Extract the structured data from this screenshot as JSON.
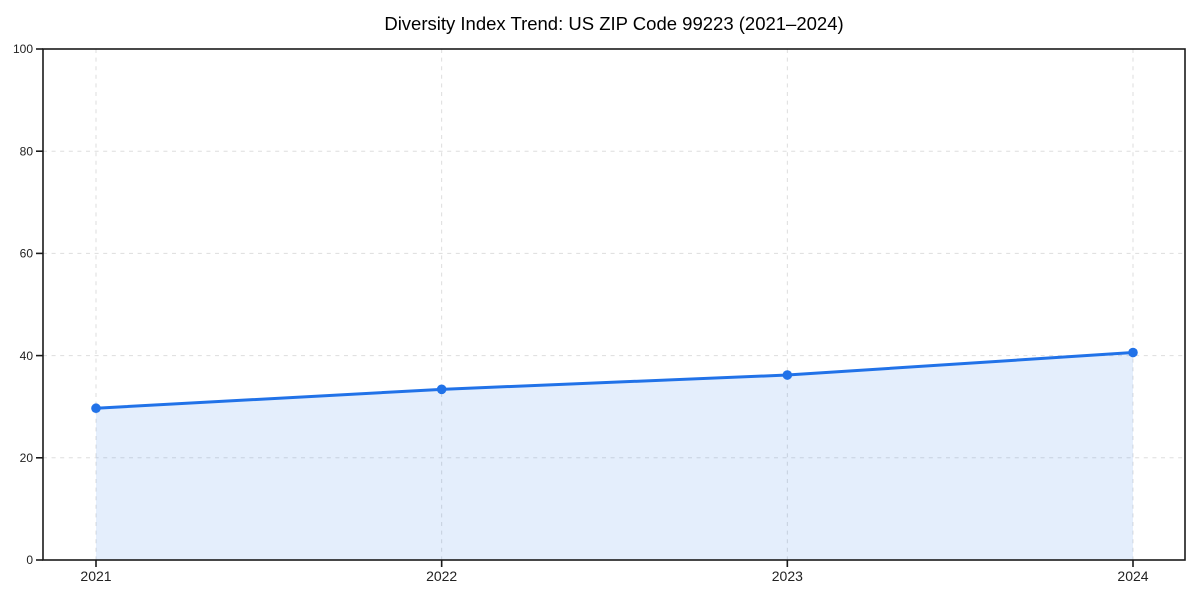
{
  "chart_data": {
    "type": "area",
    "title": "Diversity Index Trend: US ZIP Code 99223 (2021–2024)",
    "x": [
      2021,
      2022,
      2023,
      2024
    ],
    "x_tick_labels": [
      "2021",
      "2022",
      "2023",
      "2024"
    ],
    "series": [
      {
        "name": "Diversity Index",
        "values": [
          29.7,
          33.4,
          36.2,
          40.6
        ]
      }
    ],
    "ylim": [
      0,
      100
    ],
    "y_ticks": [
      0,
      20,
      40,
      60,
      80,
      100
    ],
    "xlabel": "",
    "ylabel": "",
    "grid": "dashed-both-axes",
    "legend": "none",
    "line_color": "#2172e8",
    "marker": "circle",
    "fill_color": "#2172e8",
    "fill_opacity": 0.12,
    "background_color": "#ffffff",
    "axis_color": "#1a1a1a",
    "grid_color": "#dddddd",
    "tick_label_color": "#222222"
  }
}
